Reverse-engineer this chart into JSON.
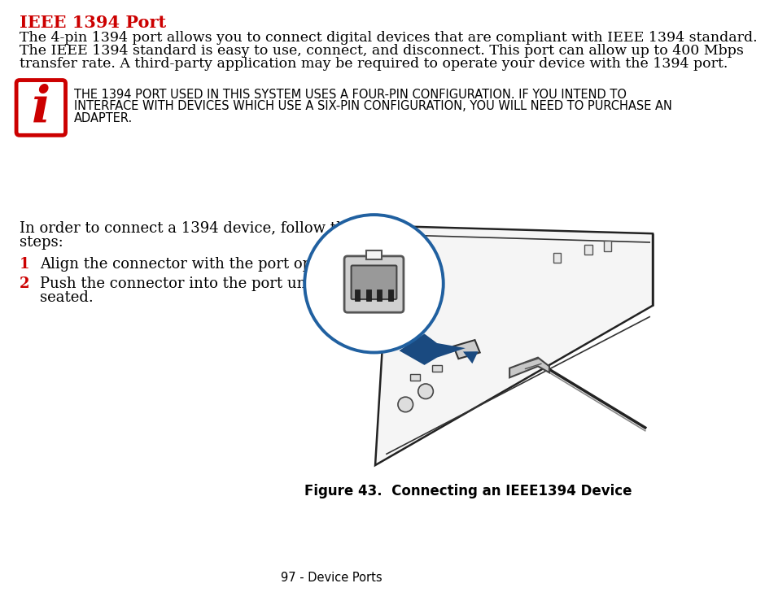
{
  "title": "IEEE 1394 Port",
  "title_color": "#CC0000",
  "body_lines": [
    "The 4-pin 1394 port allows you to connect digital devices that are compliant with IEEE 1394 standard.",
    "The IEEE 1394 standard is easy to use, connect, and disconnect. This port can allow up to 400 Mbps",
    "transfer rate. A third-party application may be required to operate your device with the 1394 port."
  ],
  "note_lines": [
    "THE 1394 PORT USED IN THIS SYSTEM USES A FOUR-PIN CONFIGURATION. IF YOU INTEND TO",
    "INTERFACE WITH DEVICES WHICH USE A SIX-PIN CONFIGURATION, YOU WILL NEED TO PURCHASE AN",
    "ADAPTER."
  ],
  "intro_lines": [
    "In order to connect a 1394 device, follow these",
    "steps:"
  ],
  "step1_num": "1",
  "step1_text": "Align the connector with the port opening.",
  "step2_num": "2",
  "step2_lines": [
    "Push the connector into the port until it is",
    "seated."
  ],
  "figure_caption": "Figure 43.  Connecting an IEEE1394 Device",
  "footer_text": "97 - Device Ports",
  "bg_color": "#FFFFFF",
  "text_color": "#000000",
  "red_color": "#CC0000",
  "blue_color": "#2060A0",
  "dark_blue": "#1A4A80"
}
